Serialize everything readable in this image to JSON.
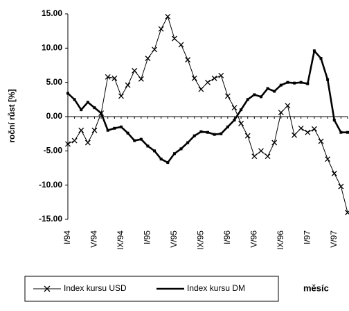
{
  "chart_data": {
    "type": "line",
    "y_label": "roční růst [%]",
    "x_label": "měsíc",
    "categories": [
      "I/94",
      null,
      null,
      null,
      "V/94",
      null,
      null,
      null,
      "IX/94",
      null,
      null,
      null,
      "I/95",
      null,
      null,
      null,
      "V/95",
      null,
      null,
      null,
      "IX/95",
      null,
      null,
      null,
      "I/96",
      null,
      null,
      null,
      "V/96",
      null,
      null,
      null,
      "IX/96",
      null,
      null,
      null,
      "I/97",
      null,
      null,
      null,
      "V/97",
      null,
      null
    ],
    "series": [
      {
        "name": "Index kursu USD",
        "color": "#000000",
        "marker": "x",
        "values": [
          -4.0,
          -3.5,
          -2.0,
          -3.8,
          -2.0,
          0.5,
          5.8,
          5.6,
          3.0,
          4.6,
          6.7,
          5.5,
          8.5,
          9.8,
          12.8,
          14.6,
          11.4,
          10.5,
          8.3,
          5.6,
          4.0,
          5.0,
          5.6,
          6.0,
          3.0,
          1.3,
          -1.0,
          -2.8,
          -5.8,
          -5.0,
          -5.8,
          -3.8,
          0.6,
          1.6,
          -2.7,
          -1.7,
          -2.3,
          -1.8,
          -3.6,
          -6.2,
          -8.3,
          -10.2,
          -14.0
        ]
      },
      {
        "name": "Index kursu DM",
        "color": "#000000",
        "marker": "square",
        "values": [
          3.4,
          2.5,
          1.0,
          2.1,
          1.3,
          0.5,
          -2.0,
          -1.7,
          -1.5,
          -2.4,
          -3.5,
          -3.3,
          -4.3,
          -5.0,
          -6.2,
          -6.7,
          -5.4,
          -4.7,
          -3.8,
          -2.8,
          -2.2,
          -2.3,
          -2.6,
          -2.5,
          -1.5,
          -0.5,
          1.0,
          2.5,
          3.2,
          2.9,
          4.1,
          3.7,
          4.6,
          5.0,
          4.9,
          5.0,
          4.8,
          9.6,
          8.5,
          5.4,
          -0.5,
          -2.3,
          -2.3
        ]
      }
    ],
    "ylim": [
      -15,
      15
    ],
    "yticks": [
      {
        "value": 15,
        "label": "15.00"
      },
      {
        "value": 10,
        "label": "10.00"
      },
      {
        "value": 5,
        "label": "5.00"
      },
      {
        "value": 0,
        "label": "0.00"
      },
      {
        "value": -5,
        "label": "-5.00"
      },
      {
        "value": -10,
        "label": "-10.00"
      },
      {
        "value": -15,
        "label": "-15.00"
      }
    ],
    "grid": false
  }
}
